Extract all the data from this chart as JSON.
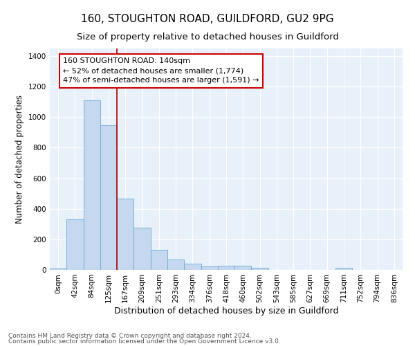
{
  "title1": "160, STOUGHTON ROAD, GUILDFORD, GU2 9PG",
  "title2": "Size of property relative to detached houses in Guildford",
  "xlabel": "Distribution of detached houses by size in Guildford",
  "ylabel": "Number of detached properties",
  "footer1": "Contains HM Land Registry data © Crown copyright and database right 2024.",
  "footer2": "Contains public sector information licensed under the Open Government Licence v3.0.",
  "bar_labels": [
    "0sqm",
    "42sqm",
    "84sqm",
    "125sqm",
    "167sqm",
    "209sqm",
    "251sqm",
    "293sqm",
    "334sqm",
    "376sqm",
    "418sqm",
    "460sqm",
    "502sqm",
    "543sqm",
    "585sqm",
    "627sqm",
    "669sqm",
    "711sqm",
    "752sqm",
    "794sqm",
    "836sqm"
  ],
  "bar_values": [
    10,
    330,
    1110,
    945,
    465,
    275,
    130,
    70,
    40,
    22,
    25,
    25,
    15,
    0,
    0,
    0,
    0,
    15,
    0,
    0,
    0
  ],
  "bar_color": "#c5d8f0",
  "bar_edgecolor": "#6aaad4",
  "bg_color": "#e8f0fa",
  "grid_color": "#ffffff",
  "red_line_color": "#aa0000",
  "annotation_text": "160 STOUGHTON ROAD: 140sqm\n← 52% of detached houses are smaller (1,774)\n47% of semi-detached houses are larger (1,591) →",
  "annotation_box_color": "#ffffff",
  "annotation_border_color": "#cc0000",
  "ylim": [
    0,
    1450
  ],
  "yticks": [
    0,
    200,
    400,
    600,
    800,
    1000,
    1200,
    1400
  ],
  "title1_fontsize": 11,
  "title2_fontsize": 9.5,
  "xlabel_fontsize": 9,
  "ylabel_fontsize": 8.5,
  "tick_fontsize": 7.5,
  "annotation_fontsize": 8,
  "footer_fontsize": 6.5,
  "red_line_x": 3.5,
  "fig_width": 6.0,
  "fig_height": 5.0,
  "fig_dpi": 100
}
